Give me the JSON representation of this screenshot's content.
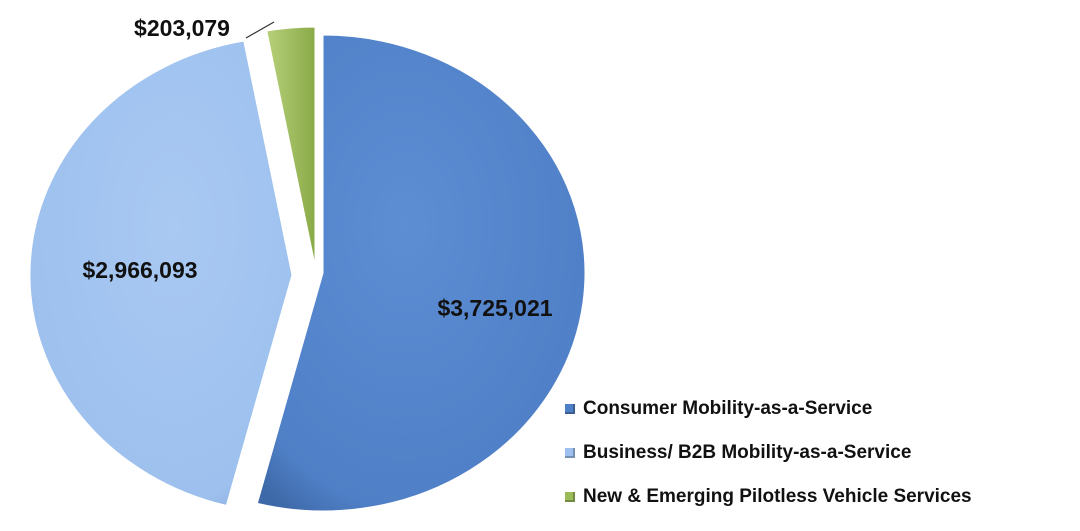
{
  "chart_data": {
    "type": "pie",
    "title": "",
    "slices": [
      {
        "name": "Consumer Mobility-as-a-Service",
        "value": 3725021,
        "label": "$3,725,021",
        "color": "#4F7FC6"
      },
      {
        "name": "Business/ B2B Mobility-as-a-Service",
        "value": 2966093,
        "label": "$2,966,093",
        "color": "#9DC0EE"
      },
      {
        "name": "New & Emerging Pilotless Vehicle Services",
        "value": 203079,
        "label": "$203,079",
        "color": "#9BBB59"
      }
    ],
    "exploded": true,
    "legend_position": "bottom-right"
  }
}
